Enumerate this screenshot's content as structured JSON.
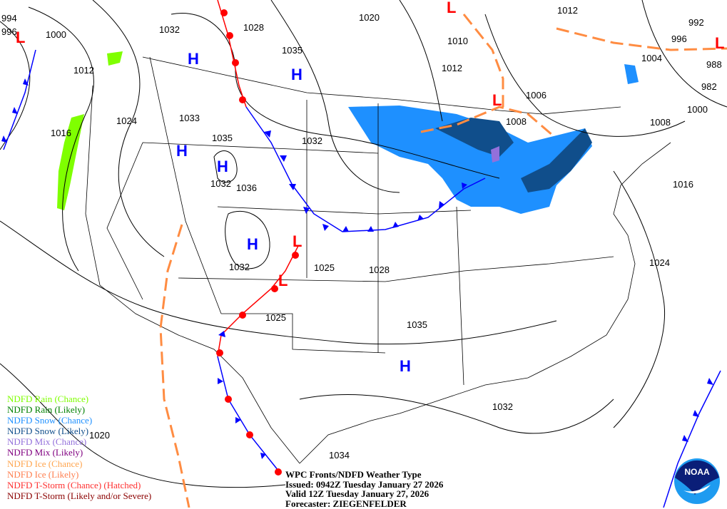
{
  "map_title": "WPC Fronts/NDFD Weather Type",
  "issued": "Issued: 0942Z Tuesday January 27 2026",
  "valid": "Valid 12Z Tuesday January 27, 2026",
  "forecaster": "Forecaster: ZIEGENFELDER",
  "logo_text": "NOAA",
  "legend": [
    {
      "label": "NDFD Rain (Chance)",
      "color": "#7fff00"
    },
    {
      "label": "NDFD Rain (Likely)",
      "color": "#008000"
    },
    {
      "label": "NDFD Snow (Chance)",
      "color": "#1e90ff"
    },
    {
      "label": "NDFD Snow (Likely)",
      "color": "#104e8b"
    },
    {
      "label": "NDFD Mix (Chance)",
      "color": "#9370db"
    },
    {
      "label": "NDFD Mix (Likely)",
      "color": "#800080"
    },
    {
      "label": "NDFD Ice (Chance)",
      "color": "#ffa54f"
    },
    {
      "label": "NDFD Ice (Likely)",
      "color": "#ff7f50"
    },
    {
      "label": "NDFD T-Storm (Chance) (Hatched)",
      "color": "#ff3030"
    },
    {
      "label": "NDFD T-Storm (Likely and/or Severe)",
      "color": "#8b0000"
    }
  ],
  "isobar_labels": [
    "994",
    "996",
    "1000",
    "1012",
    "1016",
    "1024",
    "1032",
    "1028",
    "1035",
    "1020",
    "1010",
    "1012",
    "1006",
    "1008",
    "1012",
    "996",
    "992",
    "1004",
    "988",
    "982",
    "1000",
    "1008",
    "1016",
    "1033",
    "1035",
    "1032",
    "1032",
    "1036",
    "1032",
    "1025",
    "1028",
    "1025",
    "1035",
    "1024",
    "1032",
    "1020",
    "1034"
  ],
  "pressure_centers": {
    "high": "H",
    "low": "L"
  },
  "colors": {
    "high": "#0000ff",
    "low": "#ff0000",
    "cold_front": "#0000ff",
    "warm_front": "#ff0000",
    "trough": "#ff8c42",
    "snow_chance": "#1e90ff",
    "snow_likely": "#104e8b",
    "rain_chance": "#7fff00"
  }
}
